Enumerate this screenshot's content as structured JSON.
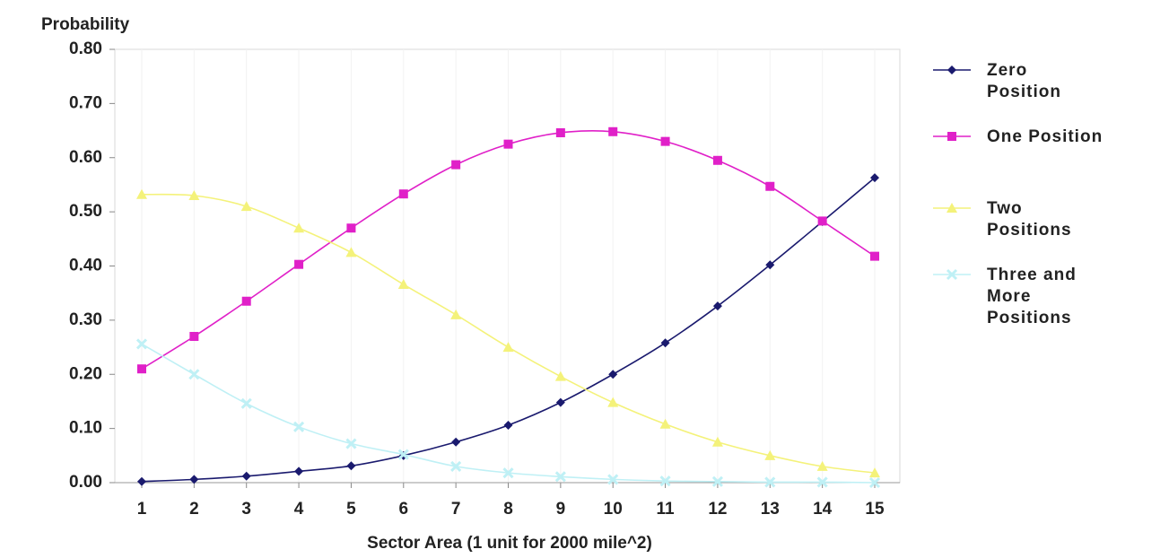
{
  "chart_data": {
    "type": "line",
    "ylabel": "Probability",
    "xlabel": "Sector Area (1 unit for 2000 mile^2)",
    "x": [
      1,
      2,
      3,
      4,
      5,
      6,
      7,
      8,
      9,
      10,
      11,
      12,
      13,
      14,
      15
    ],
    "ylim": [
      0,
      0.8
    ],
    "yticks": [
      "0.00",
      "0.10",
      "0.20",
      "0.30",
      "0.40",
      "0.50",
      "0.60",
      "0.70",
      "0.80"
    ],
    "grid": true,
    "legend_position": "right",
    "series": [
      {
        "name": "Zero Position",
        "legend_lines": [
          "Zero",
          "Position"
        ],
        "color": "#1a1a6e",
        "marker": "diamond",
        "values": [
          0.002,
          0.006,
          0.012,
          0.021,
          0.031,
          0.05,
          0.075,
          0.106,
          0.148,
          0.2,
          0.258,
          0.326,
          0.402,
          0.482,
          0.563
        ]
      },
      {
        "name": "One Position",
        "legend_lines": [
          "One Position"
        ],
        "color": "#e020c8",
        "marker": "square",
        "values": [
          0.21,
          0.27,
          0.335,
          0.403,
          0.47,
          0.533,
          0.587,
          0.625,
          0.646,
          0.648,
          0.63,
          0.595,
          0.547,
          0.483,
          0.418
        ]
      },
      {
        "name": "Two Positions",
        "legend_lines": [
          "Two",
          "Positions"
        ],
        "color": "#f4f27a",
        "marker": "triangle",
        "values": [
          0.532,
          0.53,
          0.51,
          0.47,
          0.425,
          0.366,
          0.31,
          0.25,
          0.196,
          0.148,
          0.108,
          0.075,
          0.05,
          0.03,
          0.018
        ]
      },
      {
        "name": "Three and More Positions",
        "legend_lines": [
          "Three and",
          "More",
          "Positions"
        ],
        "color": "#bff0f5",
        "marker": "x",
        "values": [
          0.256,
          0.2,
          0.146,
          0.103,
          0.072,
          0.052,
          0.03,
          0.018,
          0.011,
          0.006,
          0.003,
          0.002,
          0.001,
          0.001,
          0.0
        ]
      }
    ]
  }
}
